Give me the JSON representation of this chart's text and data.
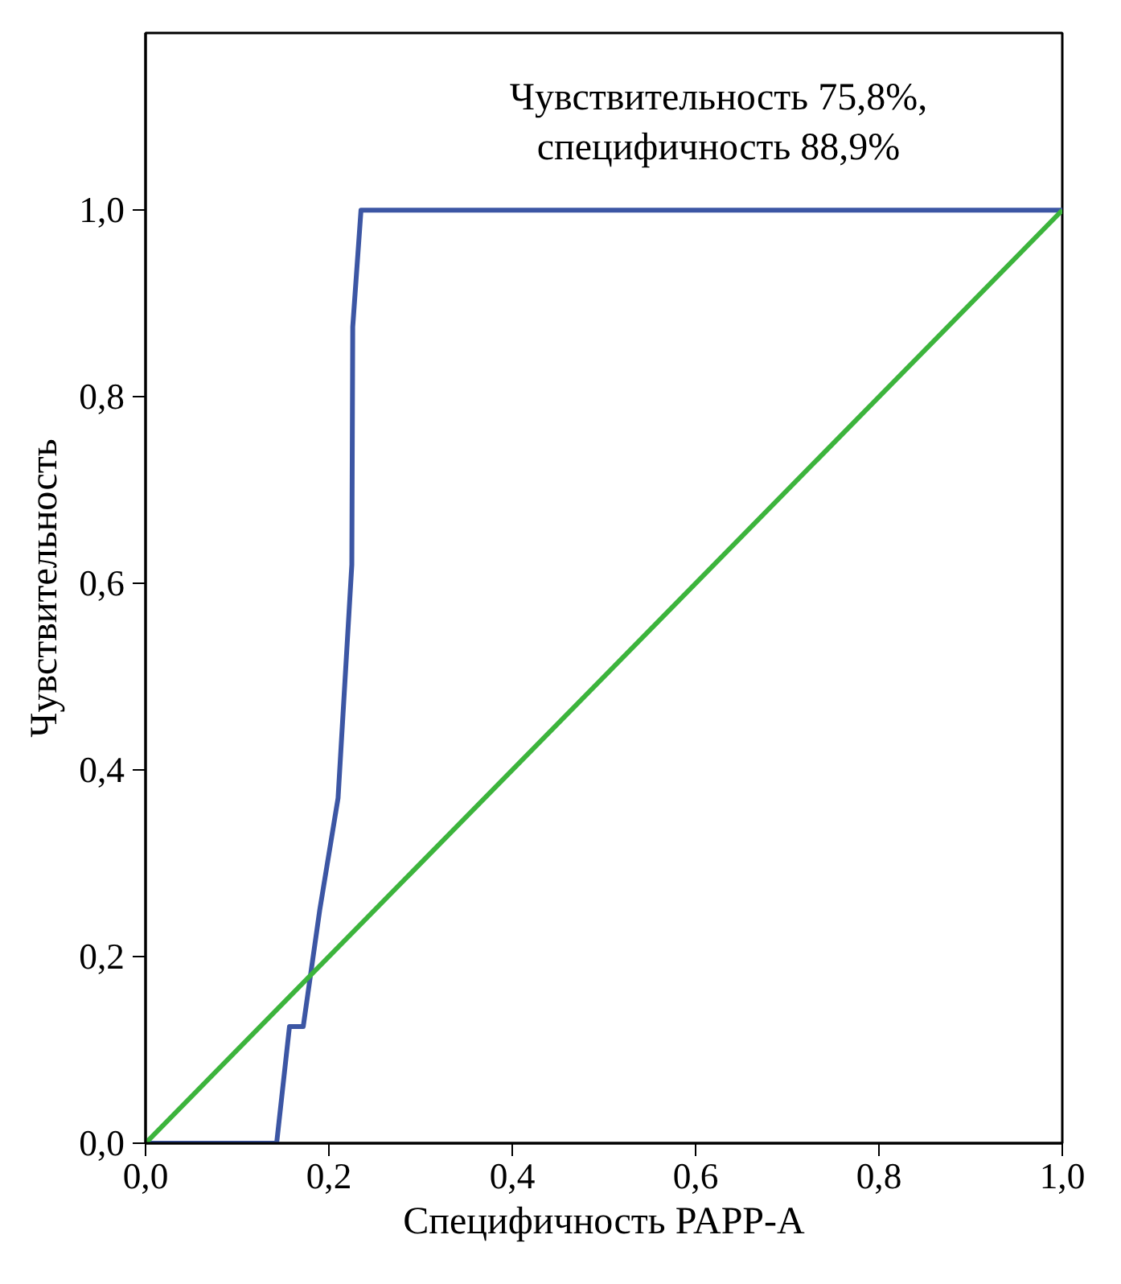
{
  "chart_data": {
    "type": "line",
    "xlabel": "Специфичность PAPP-A",
    "ylabel": "Чувствительность",
    "annotations": [
      "Чувствительность 75,8%,\nспецифичность 88,9%"
    ],
    "series": [
      {
        "color": "#3c56a4",
        "x": [
          0,
          0.143,
          0.157,
          0.172,
          0.19,
          0.21,
          0.225,
          0.226,
          0.235,
          1.0
        ],
        "values": [
          0,
          0,
          0.125,
          0.125,
          0.25,
          0.37,
          0.62,
          0.875,
          1.0,
          1.0
        ]
      },
      {
        "color": "#3cb43c",
        "x": [
          0,
          1
        ],
        "values": [
          0,
          1
        ]
      }
    ],
    "xlim": [
      0,
      1
    ],
    "ylim": [
      0,
      1.19
    ],
    "xticks": [
      {
        "value": 0,
        "label": "0,0"
      },
      {
        "value": 0.2,
        "label": "0,2"
      },
      {
        "value": 0.4,
        "label": "0,4"
      },
      {
        "value": 0.6,
        "label": "0,6"
      },
      {
        "value": 0.8,
        "label": "0,8"
      },
      {
        "value": 1,
        "label": "1,0"
      }
    ],
    "yticks": [
      {
        "value": 0,
        "label": "0,0"
      },
      {
        "value": 0.2,
        "label": "0,2"
      },
      {
        "value": 0.4,
        "label": "0,4"
      },
      {
        "value": 0.6,
        "label": "0,6"
      },
      {
        "value": 0.8,
        "label": "0,8"
      },
      {
        "value": 1,
        "label": "1,0"
      }
    ],
    "grid": false
  }
}
